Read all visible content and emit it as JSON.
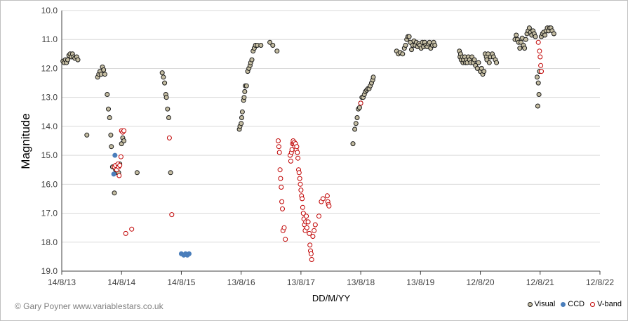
{
  "credit": "© Gary Poyner www.variablestars.co.uk",
  "chart_data": {
    "type": "scatter",
    "xlabel": "DD/M/YY",
    "ylabel": "Magnitude",
    "x_tick_labels": [
      "14/8/13",
      "14/8/14",
      "14/8/15",
      "13/8/16",
      "13/8/17",
      "13/8/18",
      "13/8/19",
      "12/8/20",
      "12/8/21",
      "12/8/22"
    ],
    "y_tick_labels": [
      "10.0",
      "11.0",
      "12.0",
      "13.0",
      "14.0",
      "15.0",
      "16.0",
      "17.0",
      "18.0",
      "19.0"
    ],
    "xlim": [
      0,
      9
    ],
    "ylim": [
      10.0,
      19.0
    ],
    "y_inverted": true,
    "grid": "horizontal",
    "legend_position": "bottom-right",
    "colors": {
      "visual_fill": "#c4bda2",
      "visual_edge": "#1a1a1a",
      "ccd_fill": "#4a7ebb",
      "ccd_edge": "#4a7ebb",
      "vband_edge": "#c00000"
    },
    "series": [
      {
        "name": "Visual",
        "marker": "filled-circle",
        "points": [
          [
            0.02,
            11.75
          ],
          [
            0.04,
            11.8
          ],
          [
            0.06,
            11.7
          ],
          [
            0.08,
            11.8
          ],
          [
            0.1,
            11.7
          ],
          [
            0.12,
            11.55
          ],
          [
            0.14,
            11.5
          ],
          [
            0.16,
            11.6
          ],
          [
            0.18,
            11.5
          ],
          [
            0.2,
            11.6
          ],
          [
            0.22,
            11.65
          ],
          [
            0.25,
            11.6
          ],
          [
            0.27,
            11.7
          ],
          [
            0.42,
            14.3
          ],
          [
            0.6,
            12.3
          ],
          [
            0.62,
            12.2
          ],
          [
            0.64,
            12.1
          ],
          [
            0.66,
            12.2
          ],
          [
            0.68,
            11.95
          ],
          [
            0.7,
            12.05
          ],
          [
            0.72,
            12.2
          ],
          [
            0.76,
            12.9
          ],
          [
            0.78,
            13.4
          ],
          [
            0.8,
            13.7
          ],
          [
            0.82,
            14.3
          ],
          [
            0.83,
            14.7
          ],
          [
            0.85,
            15.4
          ],
          [
            0.88,
            16.3
          ],
          [
            0.9,
            15.5
          ],
          [
            0.93,
            15.6
          ],
          [
            0.95,
            15.6
          ],
          [
            0.97,
            15.3
          ],
          [
            1.0,
            14.6
          ],
          [
            1.02,
            14.4
          ],
          [
            1.04,
            14.5
          ],
          [
            1.26,
            15.6
          ],
          [
            1.68,
            12.15
          ],
          [
            1.7,
            12.3
          ],
          [
            1.72,
            12.5
          ],
          [
            1.74,
            12.9
          ],
          [
            1.75,
            13.0
          ],
          [
            1.77,
            13.4
          ],
          [
            1.79,
            13.7
          ],
          [
            1.82,
            15.6
          ],
          [
            2.97,
            14.1
          ],
          [
            2.98,
            14.0
          ],
          [
            3.0,
            13.9
          ],
          [
            3.01,
            13.7
          ],
          [
            3.02,
            13.5
          ],
          [
            3.04,
            13.1
          ],
          [
            3.05,
            13.0
          ],
          [
            3.06,
            12.8
          ],
          [
            3.07,
            12.6
          ],
          [
            3.09,
            12.6
          ],
          [
            3.11,
            12.1
          ],
          [
            3.13,
            12.0
          ],
          [
            3.15,
            11.9
          ],
          [
            3.16,
            11.8
          ],
          [
            3.18,
            11.7
          ],
          [
            3.2,
            11.4
          ],
          [
            3.22,
            11.3
          ],
          [
            3.24,
            11.2
          ],
          [
            3.27,
            11.2
          ],
          [
            3.33,
            11.2
          ],
          [
            3.48,
            11.1
          ],
          [
            3.53,
            11.2
          ],
          [
            3.6,
            11.4
          ],
          [
            4.87,
            14.6
          ],
          [
            4.9,
            14.1
          ],
          [
            4.92,
            13.9
          ],
          [
            4.94,
            13.7
          ],
          [
            4.96,
            13.4
          ],
          [
            4.98,
            13.35
          ],
          [
            5.0,
            13.2
          ],
          [
            5.02,
            13.0
          ],
          [
            5.04,
            13.0
          ],
          [
            5.06,
            12.9
          ],
          [
            5.08,
            12.8
          ],
          [
            5.1,
            12.75
          ],
          [
            5.12,
            12.7
          ],
          [
            5.14,
            12.7
          ],
          [
            5.16,
            12.6
          ],
          [
            5.18,
            12.5
          ],
          [
            5.2,
            12.4
          ],
          [
            5.21,
            12.3
          ],
          [
            5.6,
            11.4
          ],
          [
            5.63,
            11.5
          ],
          [
            5.66,
            11.45
          ],
          [
            5.7,
            11.5
          ],
          [
            5.73,
            11.3
          ],
          [
            5.75,
            11.2
          ],
          [
            5.77,
            11.0
          ],
          [
            5.79,
            10.9
          ],
          [
            5.81,
            10.9
          ],
          [
            5.83,
            11.1
          ],
          [
            5.85,
            11.35
          ],
          [
            5.87,
            11.2
          ],
          [
            5.89,
            11.05
          ],
          [
            5.91,
            11.2
          ],
          [
            5.93,
            11.1
          ],
          [
            5.95,
            11.25
          ],
          [
            5.97,
            11.15
          ],
          [
            5.99,
            11.2
          ],
          [
            6.01,
            11.3
          ],
          [
            6.03,
            11.1
          ],
          [
            6.05,
            11.25
          ],
          [
            6.07,
            11.1
          ],
          [
            6.09,
            11.2
          ],
          [
            6.11,
            11.25
          ],
          [
            6.13,
            11.15
          ],
          [
            6.15,
            11.1
          ],
          [
            6.17,
            11.3
          ],
          [
            6.2,
            11.2
          ],
          [
            6.22,
            11.1
          ],
          [
            6.24,
            11.2
          ],
          [
            6.65,
            11.4
          ],
          [
            6.66,
            11.6
          ],
          [
            6.67,
            11.5
          ],
          [
            6.68,
            11.7
          ],
          [
            6.7,
            11.6
          ],
          [
            6.71,
            11.8
          ],
          [
            6.72,
            11.7
          ],
          [
            6.74,
            11.6
          ],
          [
            6.75,
            11.8
          ],
          [
            6.77,
            11.7
          ],
          [
            6.78,
            11.8
          ],
          [
            6.8,
            11.6
          ],
          [
            6.82,
            11.7
          ],
          [
            6.84,
            11.8
          ],
          [
            6.86,
            11.6
          ],
          [
            6.88,
            11.8
          ],
          [
            6.9,
            11.7
          ],
          [
            6.92,
            11.9
          ],
          [
            6.95,
            12.0
          ],
          [
            6.97,
            11.8
          ],
          [
            7.0,
            12.1
          ],
          [
            7.02,
            12.0
          ],
          [
            7.04,
            12.2
          ],
          [
            7.06,
            12.1
          ],
          [
            7.08,
            11.5
          ],
          [
            7.1,
            11.6
          ],
          [
            7.11,
            11.7
          ],
          [
            7.13,
            11.5
          ],
          [
            7.15,
            11.8
          ],
          [
            7.17,
            11.6
          ],
          [
            7.2,
            11.5
          ],
          [
            7.22,
            11.6
          ],
          [
            7.25,
            11.7
          ],
          [
            7.27,
            11.8
          ],
          [
            7.58,
            11.0
          ],
          [
            7.6,
            10.85
          ],
          [
            7.62,
            11.0
          ],
          [
            7.64,
            11.1
          ],
          [
            7.66,
            11.3
          ],
          [
            7.68,
            11.1
          ],
          [
            7.7,
            10.95
          ],
          [
            7.72,
            11.2
          ],
          [
            7.74,
            11.3
          ],
          [
            7.76,
            11.0
          ],
          [
            7.78,
            10.8
          ],
          [
            7.8,
            10.7
          ],
          [
            7.82,
            10.6
          ],
          [
            7.84,
            10.75
          ],
          [
            7.86,
            10.85
          ],
          [
            7.88,
            10.7
          ],
          [
            7.9,
            10.8
          ],
          [
            7.92,
            10.9
          ],
          [
            7.95,
            12.3
          ],
          [
            7.96,
            13.3
          ],
          [
            7.97,
            12.5
          ],
          [
            7.98,
            12.9
          ],
          [
            7.99,
            12.1
          ],
          [
            8.02,
            10.9
          ],
          [
            8.04,
            10.8
          ],
          [
            8.06,
            10.75
          ],
          [
            8.08,
            10.85
          ],
          [
            8.1,
            10.7
          ],
          [
            8.12,
            10.6
          ],
          [
            8.14,
            10.7
          ],
          [
            8.16,
            10.6
          ],
          [
            8.18,
            10.6
          ],
          [
            8.2,
            10.7
          ],
          [
            8.23,
            10.8
          ]
        ]
      },
      {
        "name": "CCD",
        "marker": "filled-circle",
        "points": [
          [
            0.87,
            15.65
          ],
          [
            0.89,
            15.0
          ],
          [
            2.0,
            18.4
          ],
          [
            2.04,
            18.45
          ],
          [
            2.07,
            18.4
          ],
          [
            2.1,
            18.45
          ],
          [
            2.13,
            18.4
          ]
        ]
      },
      {
        "name": "V-band",
        "marker": "open-circle",
        "points": [
          [
            0.88,
            15.4
          ],
          [
            0.9,
            15.35
          ],
          [
            0.92,
            15.5
          ],
          [
            0.94,
            15.3
          ],
          [
            0.95,
            15.4
          ],
          [
            0.97,
            15.35
          ],
          [
            0.96,
            15.7
          ],
          [
            0.99,
            15.05
          ],
          [
            1.0,
            14.15
          ],
          [
            1.02,
            14.2
          ],
          [
            1.04,
            14.15
          ],
          [
            1.07,
            17.7
          ],
          [
            1.17,
            17.55
          ],
          [
            1.8,
            14.4
          ],
          [
            1.84,
            17.05
          ],
          [
            3.62,
            14.5
          ],
          [
            3.63,
            14.7
          ],
          [
            3.64,
            14.9
          ],
          [
            3.65,
            15.5
          ],
          [
            3.66,
            15.8
          ],
          [
            3.67,
            16.1
          ],
          [
            3.68,
            16.6
          ],
          [
            3.69,
            16.85
          ],
          [
            3.7,
            17.6
          ],
          [
            3.72,
            17.5
          ],
          [
            3.74,
            17.9
          ],
          [
            3.82,
            15.0
          ],
          [
            3.83,
            15.2
          ],
          [
            3.84,
            14.9
          ],
          [
            3.85,
            14.8
          ],
          [
            3.86,
            14.6
          ],
          [
            3.87,
            14.5
          ],
          [
            3.88,
            14.6
          ],
          [
            3.89,
            14.55
          ],
          [
            3.9,
            14.7
          ],
          [
            3.91,
            14.6
          ],
          [
            3.92,
            14.8
          ],
          [
            3.93,
            14.7
          ],
          [
            3.94,
            14.9
          ],
          [
            3.95,
            15.1
          ],
          [
            3.96,
            15.5
          ],
          [
            3.97,
            15.6
          ],
          [
            3.98,
            15.8
          ],
          [
            3.99,
            16.0
          ],
          [
            4.0,
            16.2
          ],
          [
            4.01,
            16.4
          ],
          [
            4.02,
            16.5
          ],
          [
            4.03,
            16.8
          ],
          [
            4.04,
            17.0
          ],
          [
            4.05,
            17.2
          ],
          [
            4.06,
            17.4
          ],
          [
            4.07,
            17.6
          ],
          [
            4.08,
            17.3
          ],
          [
            4.09,
            17.1
          ],
          [
            4.1,
            17.5
          ],
          [
            4.12,
            17.3
          ],
          [
            4.14,
            17.7
          ],
          [
            4.15,
            18.1
          ],
          [
            4.16,
            18.3
          ],
          [
            4.17,
            18.4
          ],
          [
            4.18,
            18.6
          ],
          [
            4.2,
            17.8
          ],
          [
            4.22,
            17.6
          ],
          [
            4.24,
            17.4
          ],
          [
            4.3,
            17.1
          ],
          [
            4.34,
            16.6
          ],
          [
            4.37,
            16.5
          ],
          [
            4.44,
            16.4
          ],
          [
            4.45,
            16.6
          ],
          [
            4.46,
            16.7
          ],
          [
            4.47,
            16.75
          ],
          [
            5.0,
            13.2
          ],
          [
            7.97,
            11.1
          ],
          [
            7.99,
            11.4
          ],
          [
            8.0,
            11.6
          ],
          [
            8.01,
            11.9
          ],
          [
            8.02,
            12.1
          ]
        ]
      }
    ]
  }
}
